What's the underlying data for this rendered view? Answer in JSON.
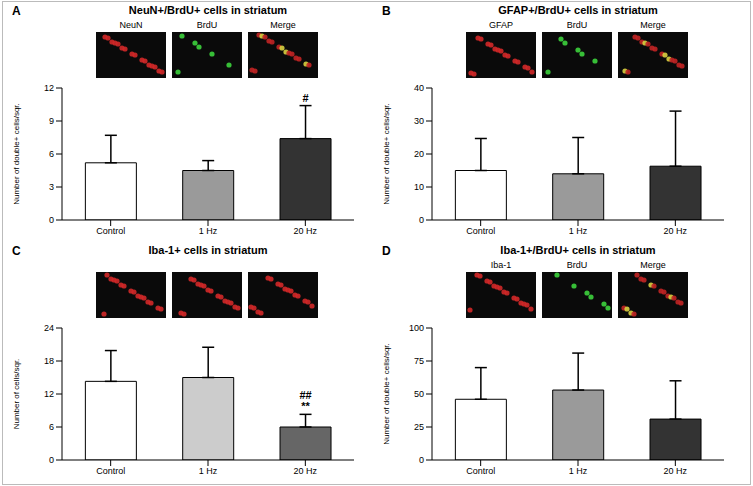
{
  "chart_data": [
    {
      "panel": "A",
      "type": "bar",
      "title": "NeuN+/BrdU+ cells in striatum",
      "image_labels": [
        "NeuN",
        "BrdU",
        "Merge"
      ],
      "y_label": "Number of double+ cells/sqr.",
      "categories": [
        "Control",
        "1 Hz",
        "20 Hz"
      ],
      "values": [
        5.2,
        4.5,
        7.4
      ],
      "errors": [
        2.5,
        0.9,
        3.0
      ],
      "colors": [
        "#ffffff",
        "#9a9a9a",
        "#333333"
      ],
      "annotations": [
        null,
        null,
        [
          "#"
        ]
      ],
      "ylim": [
        0,
        12
      ],
      "yticks": [
        0,
        3,
        6,
        9,
        12
      ]
    },
    {
      "panel": "B",
      "type": "bar",
      "title": "GFAP+/BrdU+ cells in striatum",
      "image_labels": [
        "GFAP",
        "BrdU",
        "Merge"
      ],
      "y_label": "Number of double+ cells/sqr.",
      "categories": [
        "Control",
        "1 Hz",
        "20 Hz"
      ],
      "values": [
        15,
        14,
        16.3
      ],
      "errors": [
        9.7,
        11,
        16.7
      ],
      "colors": [
        "#ffffff",
        "#9a9a9a",
        "#333333"
      ],
      "annotations": [
        null,
        null,
        null
      ],
      "ylim": [
        0,
        40
      ],
      "yticks": [
        0,
        10,
        20,
        30,
        40
      ]
    },
    {
      "panel": "C",
      "type": "bar",
      "title": "Iba-1+ cells in striatum",
      "image_labels": [],
      "y_label": "Number of cells/sqr.",
      "categories": [
        "Control",
        "1 Hz",
        "20 Hz"
      ],
      "values": [
        14.3,
        15,
        6
      ],
      "errors": [
        5.6,
        5.5,
        2.3
      ],
      "colors": [
        "#ffffff",
        "#cccccc",
        "#666666"
      ],
      "annotations": [
        null,
        null,
        [
          "##",
          "**"
        ]
      ],
      "ylim": [
        0,
        24
      ],
      "yticks": [
        0,
        6,
        12,
        18,
        24
      ]
    },
    {
      "panel": "D",
      "type": "bar",
      "title": "Iba-1+/BrdU+ cells in striatum",
      "image_labels": [
        "Iba-1",
        "BrdU",
        "Merge"
      ],
      "y_label": "Number of double+ cells/sqr.",
      "categories": [
        "Control",
        "1 Hz",
        "20 Hz"
      ],
      "values": [
        46,
        53,
        31
      ],
      "errors": [
        24,
        28,
        29
      ],
      "colors": [
        "#ffffff",
        "#9a9a9a",
        "#333333"
      ],
      "annotations": [
        null,
        null,
        null
      ],
      "ylim": [
        0,
        100
      ],
      "yticks": [
        0,
        25,
        50,
        75,
        100
      ]
    }
  ]
}
